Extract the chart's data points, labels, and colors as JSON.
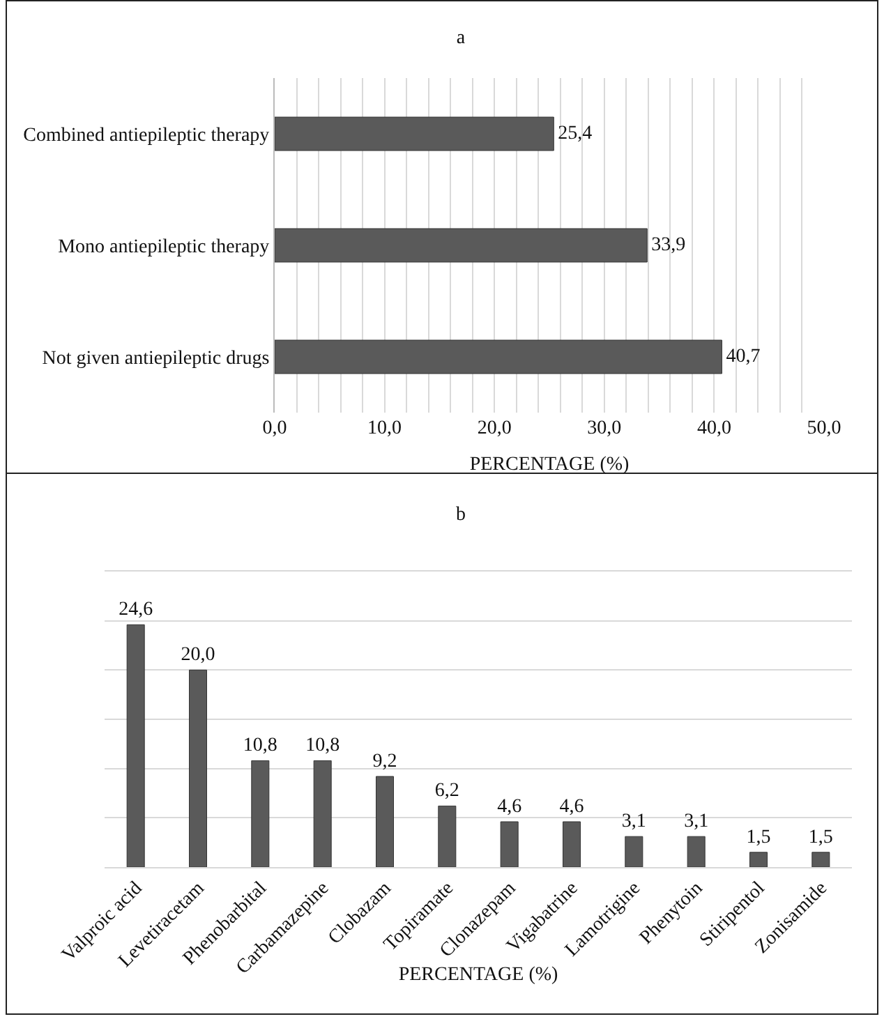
{
  "chart_data": [
    {
      "type": "bar",
      "title": "a",
      "xlabel": "PERCENTAGE (%)",
      "orientation": "horizontal",
      "categories": [
        "Combined antiepileptic therapy",
        "Mono antiepileptic therapy",
        "Not given antiepileptic drugs"
      ],
      "values": [
        25.4,
        33.9,
        40.7
      ],
      "color": "#5a5a5a",
      "value_labels": [
        "25,4",
        "33,9",
        "40,7"
      ],
      "xlim": [
        0,
        50
      ],
      "xticks": [
        {
          "value": 0,
          "label": "0,0"
        },
        {
          "value": 2,
          "label": null
        },
        {
          "value": 4,
          "label": null
        },
        {
          "value": 6,
          "label": null
        },
        {
          "value": 8,
          "label": null
        },
        {
          "value": 10,
          "label": "10,0"
        },
        {
          "value": 12,
          "label": null
        },
        {
          "value": 14,
          "label": null
        },
        {
          "value": 16,
          "label": null
        },
        {
          "value": 18,
          "label": null
        },
        {
          "value": 20,
          "label": "20,0"
        },
        {
          "value": 22,
          "label": null
        },
        {
          "value": 24,
          "label": null
        },
        {
          "value": 26,
          "label": null
        },
        {
          "value": 28,
          "label": null
        },
        {
          "value": 30,
          "label": "30,0"
        },
        {
          "value": 32,
          "label": null
        },
        {
          "value": 34,
          "label": null
        },
        {
          "value": 36,
          "label": null
        },
        {
          "value": 38,
          "label": null
        },
        {
          "value": 40,
          "label": "40,0"
        },
        {
          "value": 42,
          "label": null
        },
        {
          "value": 44,
          "label": null
        },
        {
          "value": 46,
          "label": null
        },
        {
          "value": 48,
          "label": null
        },
        {
          "value": 50,
          "label": "50,0"
        }
      ],
      "grid": "x",
      "legend": false
    },
    {
      "type": "bar",
      "title": "b",
      "xlabel": "PERCENTAGE (%)",
      "categories": [
        "Valproic acid",
        "Levetiracetam",
        "Phenobarbital",
        "Carbamazepine",
        "Clobazam",
        "Topiramate",
        "Clonazepam",
        "Vigabatrine",
        "Lamotrigine",
        "Phenytoin",
        "Stiripentol",
        "Zonisamide"
      ],
      "values": [
        24.6,
        20.0,
        10.8,
        10.8,
        9.2,
        6.2,
        4.6,
        4.6,
        3.1,
        3.1,
        1.5,
        1.5
      ],
      "color": "#5a5a5a",
      "value_labels": [
        "24,6",
        "20,0",
        "10,8",
        "10,8",
        "9,2",
        "6,2",
        "4,6",
        "4,6",
        "3,1",
        "3,1",
        "1,5",
        "1,5"
      ],
      "ylim": [
        0,
        30
      ],
      "yticks": [
        {
          "value": 0,
          "label": null
        },
        {
          "value": 5,
          "label": null
        },
        {
          "value": 10,
          "label": null
        },
        {
          "value": 15,
          "label": null
        },
        {
          "value": 20,
          "label": null
        },
        {
          "value": 25,
          "label": null
        },
        {
          "value": 30,
          "label": null
        }
      ],
      "grid": "y",
      "tick_labels": "x",
      "legend": false
    }
  ]
}
